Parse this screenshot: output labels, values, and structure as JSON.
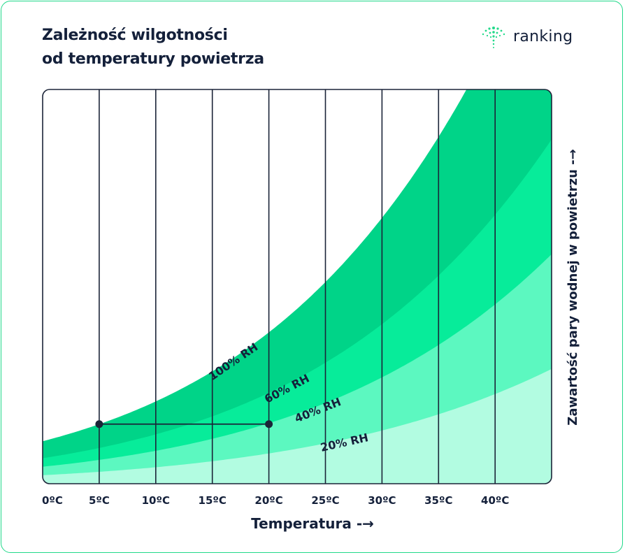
{
  "title_line1": "Zależność wilgotności",
  "title_line2": "od temperatury powietrza",
  "brand": {
    "name": "ranking",
    "logo_icon": "dotted-fountain-logo-icon"
  },
  "colors": {
    "frame": "#22d98a",
    "band_100": "#00d488",
    "band_60": "#07ec9a",
    "band_40": "#5cf8c0",
    "band_20": "#b2fce1",
    "grid": "#1b2438",
    "text": "#14203a"
  },
  "chart_data": {
    "type": "area",
    "title": "Zależność wilgotności od temperatury powietrza",
    "xlabel": "Temperatura -→",
    "ylabel": "Zawartość pary wodnej w powietrzu -→",
    "x_ticks": [
      "0ºC",
      "5ºC",
      "10ºC",
      "15ºC",
      "20ºC",
      "25ºC",
      "30ºC",
      "35ºC",
      "40ºC"
    ],
    "xlim": [
      0,
      45
    ],
    "ylim": [
      0,
      45
    ],
    "grid": "vertical",
    "y_units": "g/m³ (relative, unlabeled axis)",
    "series": [
      {
        "name": "100% RH",
        "rh": 1.0
      },
      {
        "name": "60% RH",
        "rh": 0.6
      },
      {
        "name": "40% RH",
        "rh": 0.4
      },
      {
        "name": "20% RH",
        "rh": 0.2
      }
    ],
    "marker_line": {
      "from": {
        "x": 5,
        "y": 6.8
      },
      "to": {
        "x": 20,
        "y": 6.8
      }
    }
  }
}
